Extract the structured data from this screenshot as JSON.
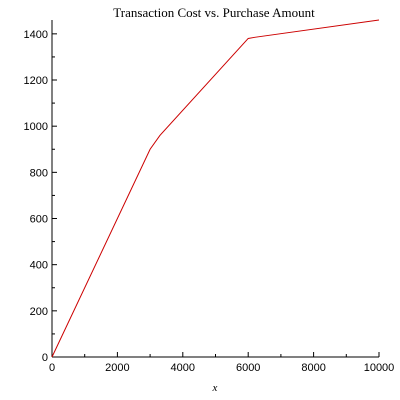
{
  "chart_data": {
    "type": "line",
    "title": "Transaction Cost vs. Purchase Amount",
    "xlabel": "x",
    "ylabel": "",
    "xlim": [
      0,
      10000
    ],
    "ylim": [
      0,
      1460
    ],
    "grid": false,
    "x_ticks": [
      0,
      2000,
      4000,
      6000,
      8000,
      10000
    ],
    "y_ticks": [
      0,
      200,
      400,
      600,
      800,
      1000,
      1200,
      1400
    ],
    "x_tick_labels": [
      "0",
      "2000",
      "4000",
      "6000",
      "8000",
      "10000"
    ],
    "y_tick_labels": [
      "0",
      "200",
      "400",
      "600",
      "800",
      "1000",
      "1200",
      "1400"
    ],
    "series": [
      {
        "color": "#cc0000",
        "x": [
          0,
          3000,
          3300,
          6000,
          6200,
          10000
        ],
        "y": [
          0,
          900,
          960,
          1380,
          1385,
          1460
        ]
      }
    ]
  }
}
